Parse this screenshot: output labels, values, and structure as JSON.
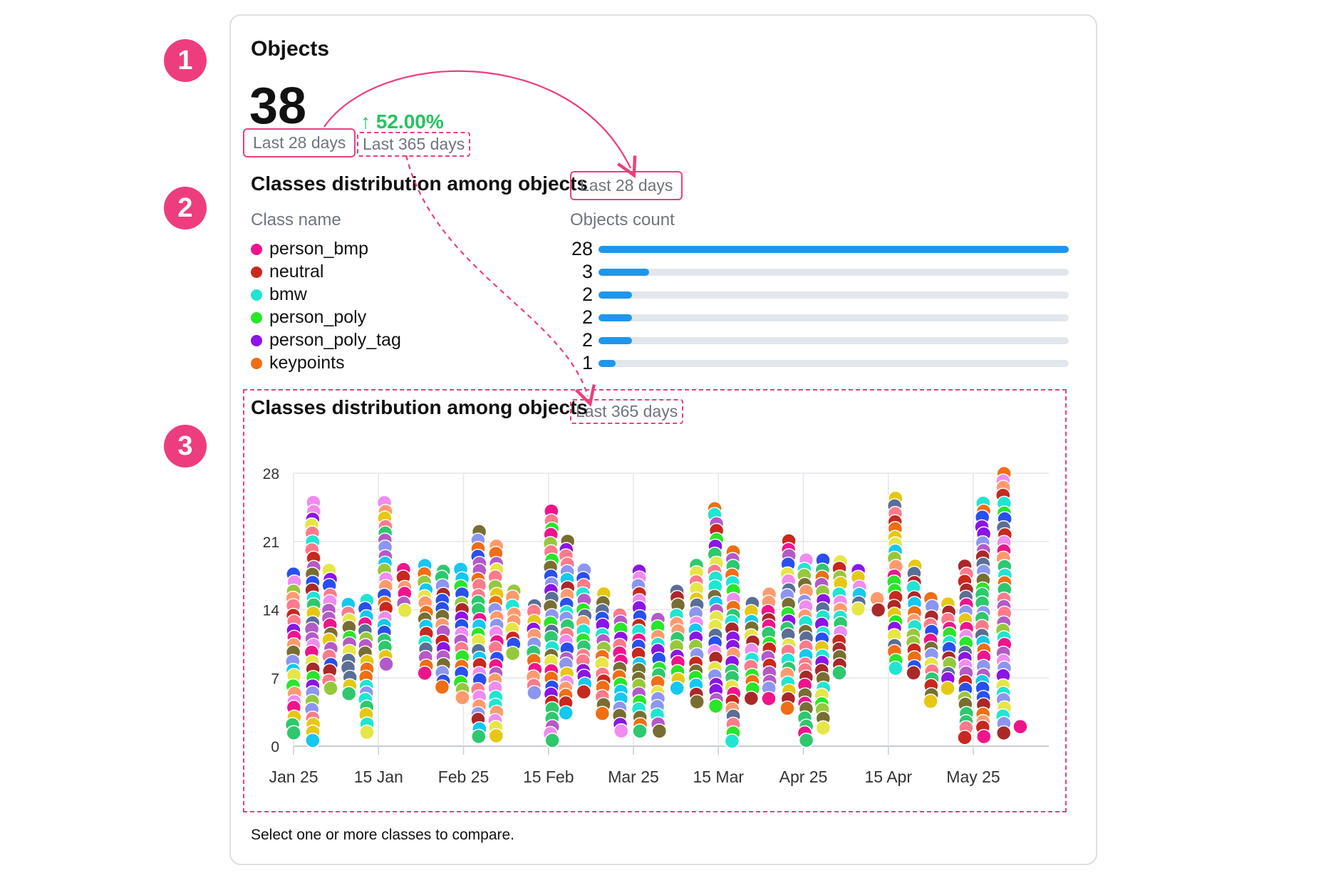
{
  "annotations": {
    "step1": "1",
    "step2": "2",
    "step3": "3"
  },
  "objects_card": {
    "title": "Objects",
    "total": "38",
    "period": "Last 28 days",
    "change": "↑ 52.00%",
    "change_period": "Last 365 days"
  },
  "distribution": {
    "title": "Classes distribution among objects",
    "period": "Last 28 days",
    "col_class": "Class name",
    "col_count": "Objects count",
    "max": 28,
    "classes": [
      {
        "name": "person_bmp",
        "count": 28,
        "color": "#f0148c"
      },
      {
        "name": "neutral",
        "count": 3,
        "color": "#c8281e"
      },
      {
        "name": "bmw",
        "count": 2,
        "color": "#1ee6d2"
      },
      {
        "name": "person_poly",
        "count": 2,
        "color": "#28e628"
      },
      {
        "name": "person_poly_tag",
        "count": 2,
        "color": "#8c14e6"
      },
      {
        "name": "keypoints",
        "count": 1,
        "color": "#f06e14"
      }
    ]
  },
  "timeline": {
    "title": "Classes distribution among objects",
    "period": "Last 365 days",
    "footer": "Select one or more classes to compare."
  },
  "chart_data": {
    "type": "scatter",
    "yticks": [
      "28",
      "21",
      "14",
      "7",
      "0"
    ],
    "xticks": [
      "Jan 25",
      "15 Jan",
      "Feb 25",
      "15 Feb",
      "Mar 25",
      "15 Mar",
      "Apr 25",
      "15 Apr",
      "May 25"
    ],
    "ylim": [
      0,
      28
    ],
    "grid": true,
    "columns": [
      {
        "x": 0,
        "top": 17.5,
        "bottom": 1.5
      },
      {
        "x": 1,
        "top": 25,
        "bottom": 0.5
      },
      {
        "x": 1.9,
        "top": 18,
        "bottom": 6
      },
      {
        "x": 2.9,
        "top": 14.5,
        "bottom": 5.5
      },
      {
        "x": 3.8,
        "top": 15,
        "bottom": 1.5
      },
      {
        "x": 4.8,
        "top": 25,
        "bottom": 8.5
      },
      {
        "x": 5.8,
        "top": 18,
        "bottom": 14
      },
      {
        "x": 6.9,
        "top": 18.5,
        "bottom": 7.5
      },
      {
        "x": 7.8,
        "top": 18,
        "bottom": 6
      },
      {
        "x": 8.8,
        "top": 18,
        "bottom": 5
      },
      {
        "x": 9.7,
        "top": 22,
        "bottom": 1
      },
      {
        "x": 10.6,
        "top": 20.5,
        "bottom": 1
      },
      {
        "x": 11.5,
        "top": 16,
        "bottom": 9.5
      },
      {
        "x": 12.6,
        "top": 14.5,
        "bottom": 5.5
      },
      {
        "x": 13.5,
        "top": 24,
        "bottom": 0.5
      },
      {
        "x": 14.3,
        "top": 21,
        "bottom": 3.5
      },
      {
        "x": 15.2,
        "top": 18,
        "bottom": 5.5
      },
      {
        "x": 16.2,
        "top": 15.5,
        "bottom": 3.5
      },
      {
        "x": 17.1,
        "top": 13.5,
        "bottom": 1.5
      },
      {
        "x": 18.1,
        "top": 18,
        "bottom": 1.5
      },
      {
        "x": 19.1,
        "top": 13,
        "bottom": 1.5
      },
      {
        "x": 20.1,
        "top": 16,
        "bottom": 6
      },
      {
        "x": 21.1,
        "top": 18.5,
        "bottom": 4.5
      },
      {
        "x": 22.1,
        "top": 24.5,
        "bottom": 4
      },
      {
        "x": 23,
        "top": 20,
        "bottom": 0.5
      },
      {
        "x": 24,
        "top": 14.5,
        "bottom": 5
      },
      {
        "x": 24.9,
        "top": 15.5,
        "bottom": 5
      },
      {
        "x": 25.9,
        "top": 21,
        "bottom": 4
      },
      {
        "x": 26.8,
        "top": 19,
        "bottom": 0.5
      },
      {
        "x": 27.7,
        "top": 19,
        "bottom": 2
      },
      {
        "x": 28.6,
        "top": 19,
        "bottom": 7.5
      },
      {
        "x": 29.6,
        "top": 18,
        "bottom": 14
      },
      {
        "x": 30.6,
        "top": 15,
        "bottom": 14
      },
      {
        "x": 31.5,
        "top": 25.5,
        "bottom": 8
      },
      {
        "x": 32.5,
        "top": 18.5,
        "bottom": 7.5
      },
      {
        "x": 33.4,
        "top": 15,
        "bottom": 4.5
      },
      {
        "x": 34.3,
        "top": 14.5,
        "bottom": 6
      },
      {
        "x": 35.2,
        "top": 18.5,
        "bottom": 1
      },
      {
        "x": 36.1,
        "top": 25,
        "bottom": 1
      },
      {
        "x": 37.2,
        "top": 28,
        "bottom": 1.5
      },
      {
        "x": 38.1,
        "top": 2,
        "bottom": 2
      }
    ]
  }
}
